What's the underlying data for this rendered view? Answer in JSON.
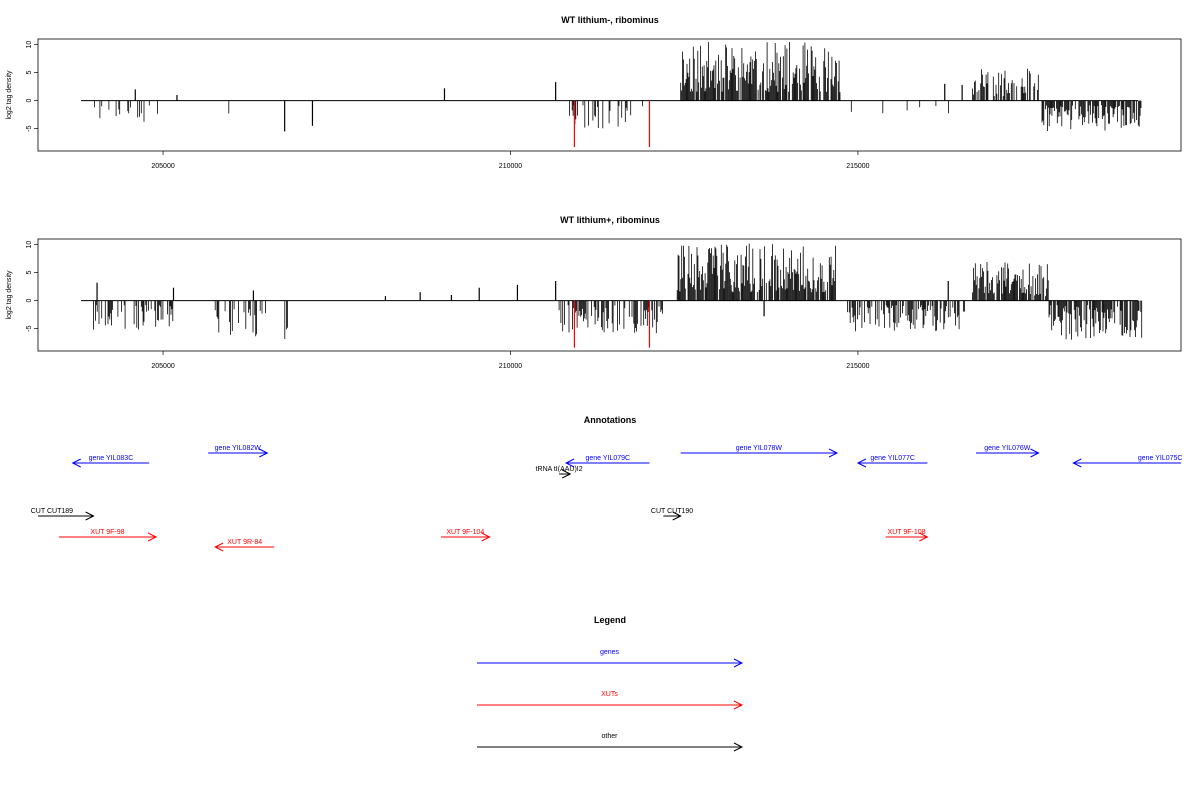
{
  "chart_data": [
    {
      "type": "bar",
      "title": "WT lithium-, ribominus",
      "ylabel": "log2 tag density",
      "xlabel": "",
      "xlim": [
        203200,
        219650
      ],
      "ylim": [
        -9,
        11
      ],
      "x_ticks": [
        205000,
        210000,
        215000
      ],
      "y_ticks": [
        -5,
        0,
        5,
        10
      ],
      "grid": false,
      "pos_regions": [
        {
          "x": [
            212450,
            214750
          ],
          "density": 0.85,
          "min": 1.5,
          "max": 10.5,
          "seed": 11
        },
        {
          "x": [
            216650,
            217620
          ],
          "density": 0.55,
          "min": 0.8,
          "max": 5.8,
          "seed": 12
        }
      ],
      "neg_regions": [
        {
          "x": [
            204000,
            204750
          ],
          "density": 0.22,
          "min": 0.8,
          "max": 4,
          "seed": 21
        },
        {
          "x": [
            204750,
            205200
          ],
          "density": 0.06,
          "min": 0.8,
          "max": 3,
          "seed": 22
        },
        {
          "x": [
            205700,
            206400
          ],
          "density": 0.05,
          "min": 1.5,
          "max": 4,
          "seed": 23
        },
        {
          "x": [
            206600,
            207100
          ],
          "density": 0.02,
          "min": 3,
          "max": 5,
          "seed": 24
        },
        {
          "x": [
            210850,
            212000
          ],
          "density": 0.35,
          "min": 0.8,
          "max": 5,
          "seed": 25
        },
        {
          "x": [
            214750,
            216550
          ],
          "density": 0.05,
          "min": 0.8,
          "max": 3,
          "seed": 26
        },
        {
          "x": [
            217650,
            219100
          ],
          "density": 0.75,
          "min": 0.8,
          "max": 5.5,
          "seed": 27
        }
      ],
      "spikes": [
        {
          "x": 204600,
          "y": 2
        },
        {
          "x": 205200,
          "y": 1
        },
        {
          "x": 206750,
          "y": -5.5
        },
        {
          "x": 207150,
          "y": -4.5
        },
        {
          "x": 209050,
          "y": 2.2
        },
        {
          "x": 210650,
          "y": 3.3
        },
        {
          "x": 216250,
          "y": 3
        },
        {
          "x": 216500,
          "y": 2.8
        }
      ],
      "red_spikes": [
        {
          "x": 210920,
          "y": -8.3
        },
        {
          "x": 212000,
          "y": -8.3
        }
      ]
    },
    {
      "type": "bar",
      "title": "WT lithium+, ribominus",
      "ylabel": "log2 tag density",
      "xlabel": "",
      "xlim": [
        203200,
        219650
      ],
      "ylim": [
        -9,
        11
      ],
      "x_ticks": [
        205000,
        210000,
        215000
      ],
      "y_ticks": [
        -5,
        0,
        5,
        10
      ],
      "grid": false,
      "pos_regions": [
        {
          "x": [
            212400,
            214700
          ],
          "density": 0.9,
          "min": 1.5,
          "max": 10.2,
          "seed": 31
        },
        {
          "x": [
            216650,
            217750
          ],
          "density": 0.8,
          "min": 0.8,
          "max": 7,
          "seed": 32
        }
      ],
      "neg_regions": [
        {
          "x": [
            204000,
            205200
          ],
          "density": 0.45,
          "min": 0.8,
          "max": 5.2,
          "seed": 41
        },
        {
          "x": [
            205750,
            206500
          ],
          "density": 0.4,
          "min": 1.5,
          "max": 6.5,
          "seed": 42
        },
        {
          "x": [
            206700,
            207100
          ],
          "density": 0.06,
          "min": 4,
          "max": 8,
          "seed": 43
        },
        {
          "x": [
            210700,
            212200
          ],
          "density": 0.5,
          "min": 0.8,
          "max": 5.8,
          "seed": 44
        },
        {
          "x": [
            214850,
            216550
          ],
          "density": 0.6,
          "min": 0.8,
          "max": 5.5,
          "seed": 45
        },
        {
          "x": [
            217750,
            219100
          ],
          "density": 0.8,
          "min": 0.8,
          "max": 7,
          "seed": 46
        }
      ],
      "spikes": [
        {
          "x": 204050,
          "y": 3.2
        },
        {
          "x": 205150,
          "y": 2.3
        },
        {
          "x": 206300,
          "y": 1.8
        },
        {
          "x": 208200,
          "y": 0.8
        },
        {
          "x": 208700,
          "y": 1.5
        },
        {
          "x": 209150,
          "y": 1
        },
        {
          "x": 209550,
          "y": 2.3
        },
        {
          "x": 210100,
          "y": 2.8
        },
        {
          "x": 210650,
          "y": 3.5
        },
        {
          "x": 213650,
          "y": -2.8
        },
        {
          "x": 216300,
          "y": 3.5
        }
      ],
      "red_spikes": [
        {
          "x": 210920,
          "y": -8.4
        },
        {
          "x": 212000,
          "y": -8.4
        }
      ]
    }
  ],
  "annotations": {
    "title": "Annotations",
    "features": [
      {
        "label": "gene YIL083C",
        "color": "#0000ff",
        "start": 204800,
        "end": 203700,
        "row": "gene-minus"
      },
      {
        "label": "gene YIL082W",
        "color": "#0000ff",
        "start": 205650,
        "end": 206500,
        "row": "gene-plus"
      },
      {
        "label": "gene YIL079C",
        "color": "#0000ff",
        "start": 212000,
        "end": 210800,
        "row": "gene-minus"
      },
      {
        "label": "gene YIL078W",
        "color": "#0000ff",
        "start": 212450,
        "end": 214700,
        "row": "gene-plus"
      },
      {
        "label": "gene YIL077C",
        "color": "#0000ff",
        "start": 216000,
        "end": 215000,
        "row": "gene-minus"
      },
      {
        "label": "gene YIL076W",
        "color": "#0000ff",
        "start": 216700,
        "end": 217600,
        "row": "gene-plus"
      },
      {
        "label": "gene YIL075C",
        "color": "#0000ff",
        "start": 219650,
        "end": 218100,
        "row": "gene-minus",
        "label_x": 219350
      },
      {
        "label": "tRNA tI(AAU)I2",
        "color": "#000000",
        "start": 210700,
        "end": 210860,
        "row": "trna",
        "label_x": 210700
      },
      {
        "label": "CUT CUT189",
        "color": "#000000",
        "start": 203200,
        "end": 204000,
        "row": "cut",
        "label_x": 203400
      },
      {
        "label": "CUT CUT190",
        "color": "#000000",
        "start": 212200,
        "end": 212450,
        "row": "cut"
      },
      {
        "label": "XUT 9F-98",
        "color": "#ff0000",
        "start": 203500,
        "end": 204900,
        "row": "xut-plus"
      },
      {
        "label": "XUT 9R-84",
        "color": "#ff0000",
        "start": 206600,
        "end": 205750,
        "row": "xut-minus"
      },
      {
        "label": "XUT 9F-104",
        "color": "#ff0000",
        "start": 209000,
        "end": 209700,
        "row": "xut-plus"
      },
      {
        "label": "XUT 9F-108",
        "color": "#ff0000",
        "start": 215400,
        "end": 216000,
        "row": "xut-plus"
      }
    ]
  },
  "legend": {
    "title": "Legend",
    "items": [
      {
        "label": "genes",
        "color": "#0000ff"
      },
      {
        "label": "XUTs",
        "color": "#ff0000"
      },
      {
        "label": "other",
        "color": "#000000"
      }
    ]
  }
}
